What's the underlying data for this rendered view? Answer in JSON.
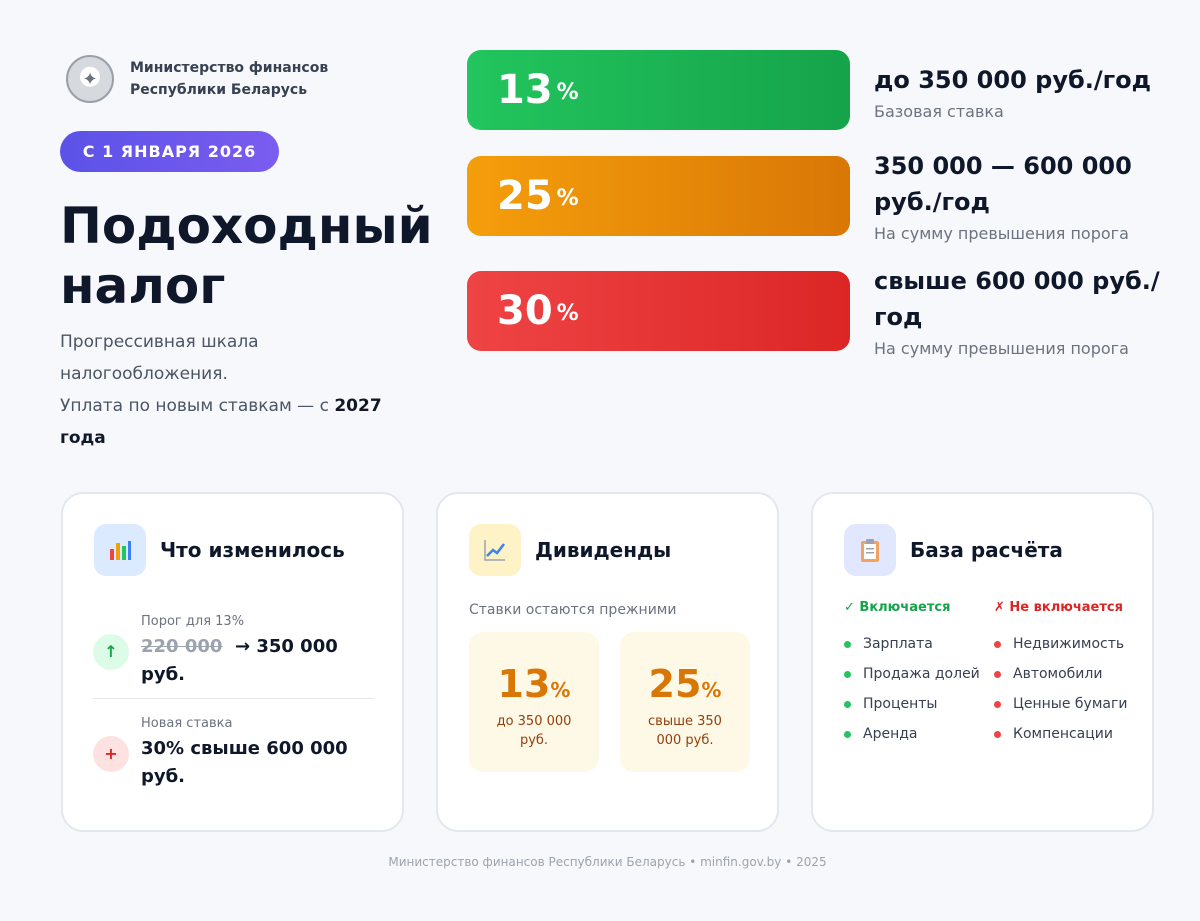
{
  "ministry": {
    "line1": "Министерство финансов",
    "line2": "Республики Беларусь",
    "emblem_icon": "state-emblem-icon"
  },
  "date_badge": "С 1 ЯНВАРЯ 2026",
  "title": {
    "line1": "Подоходный",
    "line2": "налог"
  },
  "subtitle": {
    "line1": "Прогрессивная шкала",
    "line2": "налогообложения.",
    "line3_prefix": "Уплата по новым ставкам — с",
    "line3_bold": "2027",
    "line4_bold": "года"
  },
  "rates": [
    {
      "value": "13",
      "unit": "%",
      "color": "#22c55e",
      "heading": "до 350 000 руб./год",
      "note": "Базовая ставка"
    },
    {
      "value": "25",
      "unit": "%",
      "color": "#f59e0b",
      "heading_line1": "350 000 — 600 000",
      "heading_line2": "руб./год",
      "note": "На сумму превышения порога"
    },
    {
      "value": "30",
      "unit": "%",
      "color": "#ef4444",
      "heading_line1": "свыше 600 000 руб./",
      "heading_line2": "год",
      "note": "На сумму превышения порога"
    }
  ],
  "changes_card": {
    "title": "Что изменилось",
    "icon": "bar-chart-icon",
    "items": [
      {
        "icon": "↑",
        "label": "Порог для 13%",
        "old": "220 000",
        "arrow": "→",
        "new": "350 000",
        "unit": "руб."
      },
      {
        "icon": "+",
        "label": "Новая ставка",
        "value_line1": "30% свыше 600 000",
        "value_line2": "руб."
      }
    ]
  },
  "dividends_card": {
    "title": "Дивиденды",
    "icon": "line-chart-icon",
    "subtitle": "Ставки остаются прежними",
    "boxes": [
      {
        "value": "13",
        "unit": "%",
        "desc_line1": "до 350 000",
        "desc_line2": "руб."
      },
      {
        "value": "25",
        "unit": "%",
        "desc_line1": "свыше 350",
        "desc_line2": "000 руб."
      }
    ]
  },
  "base_card": {
    "title": "База расчёта",
    "icon": "clipboard-icon",
    "included_header": "✓ Включается",
    "excluded_header": "✗ Не включается",
    "included": [
      "Зарплата",
      "Продажа долей",
      "Проценты",
      "Аренда"
    ],
    "excluded": [
      "Недвижимость",
      "Автомобили",
      "Ценные бумаги",
      "Компенсации"
    ]
  },
  "footer": "Министерство финансов Республики Беларусь • minfin.gov.by • 2025"
}
